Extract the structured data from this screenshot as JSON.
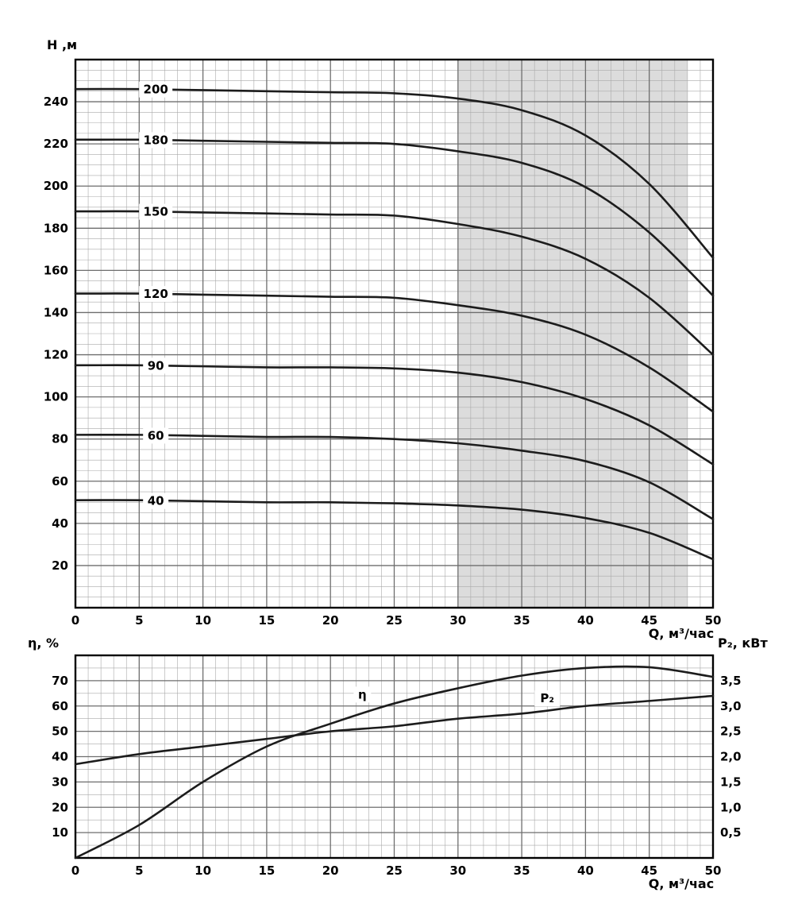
{
  "figure": {
    "background": "#ffffff",
    "curve_color": "#1c1c1c",
    "frame_color": "#000000",
    "grid_minor_color": "#a9a9a9",
    "grid_major_color": "#6e6e6e",
    "shaded_region_color": "#dcdcdc",
    "text_color": "#000000"
  },
  "chart_data": [
    {
      "type": "line",
      "xlabel": "Q, м³/час",
      "ylabel": "Н ,м",
      "xlim": [
        0,
        50
      ],
      "ylim": [
        0,
        260
      ],
      "grid": true,
      "x_ticks": [
        0,
        5,
        10,
        15,
        20,
        25,
        30,
        35,
        40,
        45,
        50
      ],
      "y_ticks": [
        20,
        40,
        60,
        80,
        100,
        120,
        140,
        160,
        180,
        200,
        220,
        240
      ],
      "x_minor_step": 1,
      "y_minor_step": 5,
      "shaded_region": {
        "x0": 30,
        "x1": 48
      },
      "x": [
        0,
        5,
        10,
        15,
        20,
        25,
        30,
        35,
        40,
        45,
        50
      ],
      "series": [
        {
          "name": "200",
          "label_at": [
            6.3,
            245.8
          ],
          "values": [
            246,
            246,
            245.5,
            245,
            244.5,
            244,
            241.5,
            236,
            224,
            201,
            166
          ]
        },
        {
          "name": "180",
          "label_at": [
            6.3,
            221.8
          ],
          "values": [
            222,
            222,
            221.5,
            221,
            220.5,
            220,
            216.5,
            211,
            199.5,
            178,
            148
          ]
        },
        {
          "name": "150",
          "label_at": [
            6.3,
            187.8
          ],
          "values": [
            188,
            188,
            187.5,
            187,
            186.5,
            186,
            182,
            176,
            165.5,
            147,
            120
          ]
        },
        {
          "name": "120",
          "label_at": [
            6.3,
            148.8
          ],
          "values": [
            149,
            149,
            148.5,
            148,
            147.5,
            147,
            143.5,
            138.5,
            129.5,
            114,
            93
          ]
        },
        {
          "name": "90",
          "label_at": [
            6.3,
            114.8
          ],
          "values": [
            115,
            115,
            114.5,
            114,
            114,
            113.5,
            111.5,
            107,
            99,
            86.5,
            68
          ]
        },
        {
          "name": "60",
          "label_at": [
            6.3,
            81.6
          ],
          "values": [
            82,
            82,
            81.5,
            81,
            81,
            80,
            78,
            74.5,
            69.5,
            59.5,
            42
          ]
        },
        {
          "name": "40",
          "label_at": [
            6.3,
            50.6
          ],
          "values": [
            51,
            51,
            50.5,
            50,
            50,
            49.5,
            48.5,
            46.5,
            42.5,
            35.5,
            23
          ]
        }
      ]
    },
    {
      "type": "line",
      "xlabel": "Q, м³/час",
      "ylabel_left": "η, %",
      "ylabel_right": "Р₂, кВт",
      "xlim": [
        0,
        50
      ],
      "ylim_left": [
        0,
        80
      ],
      "ylim_right": [
        0,
        4
      ],
      "grid": true,
      "x_ticks": [
        0,
        5,
        10,
        15,
        20,
        25,
        30,
        35,
        40,
        45,
        50
      ],
      "y_ticks_left": [
        10,
        20,
        30,
        40,
        50,
        60,
        70
      ],
      "y_ticks_right": [
        [
          0.5,
          "0,5"
        ],
        [
          1,
          "1,0"
        ],
        [
          1.5,
          "1,5"
        ],
        [
          2,
          "2,0"
        ],
        [
          2.5,
          "2,5"
        ],
        [
          3,
          "3,0"
        ],
        [
          3.5,
          "3,5"
        ]
      ],
      "x_minor_step": 1,
      "y_minor_step": 5,
      "x": [
        0,
        5,
        10,
        15,
        20,
        25,
        30,
        35,
        40,
        45,
        50
      ],
      "series": [
        {
          "name": "η",
          "axis": "left",
          "label_at": [
            22.5,
            64.5
          ],
          "values": [
            0,
            13,
            30,
            44,
            53,
            61,
            67,
            72,
            75,
            75.3,
            71.5
          ]
        },
        {
          "name": "Р₂",
          "axis": "right",
          "label_at": [
            37,
            63
          ],
          "values": [
            1.85,
            2.05,
            2.2,
            2.35,
            2.5,
            2.6,
            2.75,
            2.85,
            3.0,
            3.1,
            3.2
          ]
        }
      ]
    }
  ]
}
